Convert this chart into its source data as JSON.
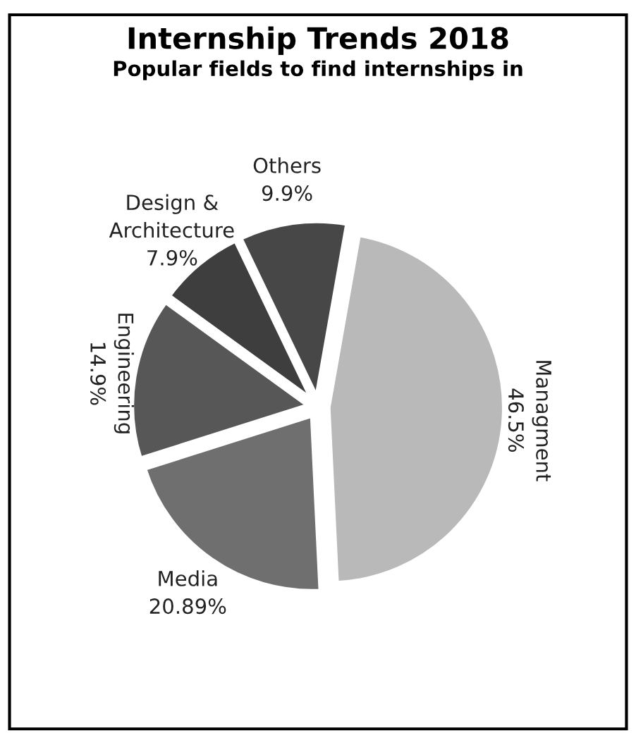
{
  "chart_data": {
    "type": "pie",
    "title": "Internship Trends 2018",
    "subtitle": "Popular fields to find internships in",
    "categories": [
      "Managment",
      "Media",
      "Engineering",
      "Design &\nArchitecture",
      "Others"
    ],
    "values": [
      46.5,
      20.89,
      14.9,
      7.9,
      9.9
    ],
    "value_labels": [
      "46.5%",
      "20.89%",
      "14.9%",
      "7.9%",
      "9.9%"
    ],
    "colors": [
      "#b9b9b9",
      "#6f6f6f",
      "#575757",
      "#3e3e3e",
      "#474747"
    ],
    "legend": false
  }
}
